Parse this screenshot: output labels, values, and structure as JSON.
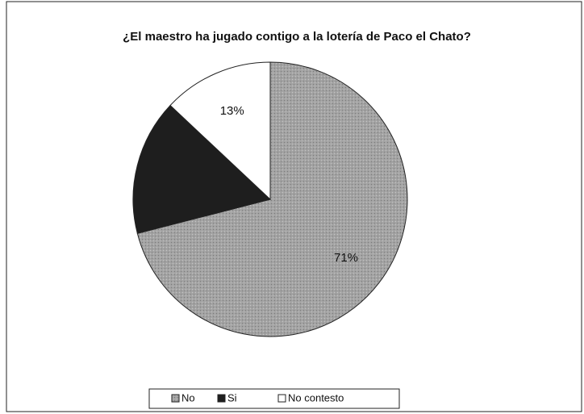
{
  "chart_data": {
    "type": "pie",
    "title": "¿El maestro ha jugado contigo a la lotería de Paco el Chato?",
    "categories": [
      "No",
      "Si",
      "No contesto"
    ],
    "values": [
      71,
      16,
      13
    ],
    "value_labels": [
      "71%",
      null,
      "13%"
    ],
    "colors": [
      "#a3a3a3",
      "#1e1e1e",
      "#ffffff"
    ],
    "legend": "bottom"
  }
}
